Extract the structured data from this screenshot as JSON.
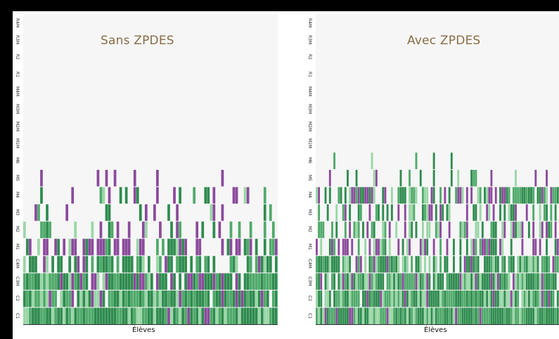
{
  "colors": {
    "dark_green": "#2e8b4e",
    "mid_green": "#4faa6a",
    "light_green": "#9ad6a6",
    "purple": "#8b4a9c",
    "bg": "#f6f6f6"
  },
  "chart_data": [
    {
      "type": "heatmap",
      "title": "Sans ZPDES",
      "xlabel": "Élèves",
      "y_categories": [
        "R4M",
        "R3M",
        "R2",
        "R1",
        "M4M",
        "M3M",
        "M2M",
        "M1M",
        "M6",
        "M5",
        "M4",
        "M3",
        "M2",
        "M1",
        "C4M",
        "C3M",
        "C2",
        "C1"
      ],
      "fill_profile": [
        0,
        0,
        0,
        0,
        0,
        0,
        0,
        0,
        0,
        0.05,
        0.12,
        0.2,
        0.3,
        0.55,
        0.7,
        0.85,
        0.95,
        1.0
      ],
      "purple_share": [
        0,
        0,
        0,
        0,
        0,
        0,
        0,
        0,
        0,
        0.7,
        0.5,
        0.5,
        0.35,
        0.55,
        0.1,
        0.15,
        0.1,
        0.05
      ]
    },
    {
      "type": "heatmap",
      "title": "Avec ZPDES",
      "xlabel": "Élèves",
      "y_categories": [
        "R4M",
        "R3M",
        "R2",
        "R1",
        "M4M",
        "M3M",
        "M2M",
        "M1M",
        "M6",
        "M5",
        "M4",
        "M3",
        "M2",
        "M1",
        "C4M",
        "C3M",
        "C2",
        "C1"
      ],
      "fill_profile": [
        0.01,
        0.0,
        0.0,
        0.0,
        0.0,
        0.0,
        0.0,
        0.02,
        0.04,
        0.15,
        0.6,
        0.45,
        0.55,
        0.5,
        0.8,
        0.9,
        0.97,
        1.0
      ],
      "purple_share": [
        0,
        0,
        0,
        0,
        0,
        0,
        0,
        0,
        0.1,
        0.2,
        0.3,
        0.25,
        0.3,
        0.35,
        0.1,
        0.15,
        0.1,
        0.08
      ]
    }
  ]
}
